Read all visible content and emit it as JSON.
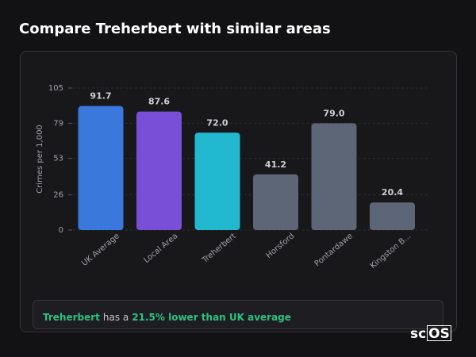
{
  "title": "Compare Treherbert with similar areas",
  "chart_data": {
    "type": "bar",
    "y_label": "Crimes per 1,000",
    "categories": [
      "UK Average",
      "Local Area",
      "Treherbert",
      "Horsford",
      "Pontardawe",
      "Kingston B..."
    ],
    "values": [
      91.7,
      87.6,
      72.0,
      41.2,
      79.0,
      20.4
    ],
    "value_labels": [
      "91.7",
      "87.6",
      "72.0",
      "41.2",
      "79.0",
      "20.4"
    ],
    "colors": [
      "#3b78dc",
      "#7a4fd8",
      "#22b9d0",
      "#5d6676",
      "#5d6676",
      "#5d6676"
    ],
    "ylim": [
      0,
      105
    ],
    "yticks": [
      0,
      26,
      53,
      79,
      105
    ],
    "grid": true
  },
  "summary": {
    "area": "Treherbert",
    "text": "has a",
    "highlight": "21.5% lower than UK average"
  },
  "logo": {
    "prefix": "sc",
    "boxed": "OS"
  }
}
